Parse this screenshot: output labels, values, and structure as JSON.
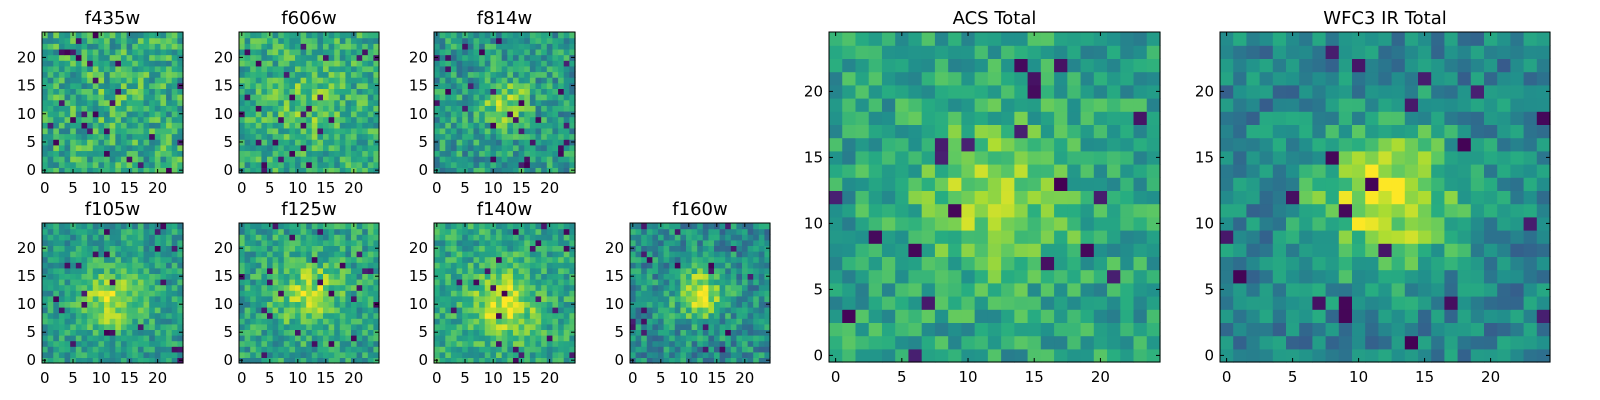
{
  "figure": {
    "colormap": "viridis",
    "colors": {
      "low": "#440154",
      "mid": "#21918c",
      "high": "#fde725"
    }
  },
  "chart_data": [
    {
      "type": "heatmap",
      "title": "f435w",
      "grid_size": 25,
      "xlim": [
        0,
        24
      ],
      "ylim": [
        0,
        24
      ],
      "xticks": [
        0,
        5,
        10,
        15,
        20
      ],
      "yticks": [
        0,
        5,
        10,
        15,
        20
      ],
      "peak": [
        12,
        12
      ],
      "peak_amp": 0.05,
      "peak_sigma": 4,
      "base": 0.62,
      "noise": 0.38,
      "seed": 11
    },
    {
      "type": "heatmap",
      "title": "f606w",
      "grid_size": 25,
      "xlim": [
        0,
        24
      ],
      "ylim": [
        0,
        24
      ],
      "xticks": [
        0,
        5,
        10,
        15,
        20
      ],
      "yticks": [
        0,
        5,
        10,
        15,
        20
      ],
      "peak": [
        12,
        12
      ],
      "peak_amp": 0.15,
      "peak_sigma": 4,
      "base": 0.62,
      "noise": 0.34,
      "seed": 23
    },
    {
      "type": "heatmap",
      "title": "f814w",
      "grid_size": 25,
      "xlim": [
        0,
        24
      ],
      "ylim": [
        0,
        24
      ],
      "xticks": [
        0,
        5,
        10,
        15,
        20
      ],
      "yticks": [
        0,
        5,
        10,
        15,
        20
      ],
      "peak": [
        12,
        12
      ],
      "peak_amp": 0.3,
      "peak_sigma": 3,
      "base": 0.55,
      "noise": 0.36,
      "seed": 37
    },
    {
      "type": "heatmap",
      "title": "f105w",
      "grid_size": 25,
      "xlim": [
        0,
        24
      ],
      "ylim": [
        0,
        24
      ],
      "xticks": [
        0,
        5,
        10,
        15,
        20
      ],
      "yticks": [
        0,
        5,
        10,
        15,
        20
      ],
      "peak": [
        12,
        11
      ],
      "peak_amp": 0.35,
      "peak_sigma": 4,
      "base": 0.55,
      "noise": 0.3,
      "seed": 41
    },
    {
      "type": "heatmap",
      "title": "f125w",
      "grid_size": 25,
      "xlim": [
        0,
        24
      ],
      "ylim": [
        0,
        24
      ],
      "xticks": [
        0,
        5,
        10,
        15,
        20
      ],
      "yticks": [
        0,
        5,
        10,
        15,
        20
      ],
      "peak": [
        12,
        12
      ],
      "peak_amp": 0.3,
      "peak_sigma": 4,
      "base": 0.58,
      "noise": 0.32,
      "seed": 53
    },
    {
      "type": "heatmap",
      "title": "f140w",
      "grid_size": 25,
      "xlim": [
        0,
        24
      ],
      "ylim": [
        0,
        24
      ],
      "xticks": [
        0,
        5,
        10,
        15,
        20
      ],
      "yticks": [
        0,
        5,
        10,
        15,
        20
      ],
      "peak": [
        12,
        10
      ],
      "peak_amp": 0.35,
      "peak_sigma": 4,
      "base": 0.6,
      "noise": 0.3,
      "seed": 67
    },
    {
      "type": "heatmap",
      "title": "f160w",
      "grid_size": 25,
      "xlim": [
        0,
        24
      ],
      "ylim": [
        0,
        24
      ],
      "xticks": [
        0,
        5,
        10,
        15,
        20
      ],
      "yticks": [
        0,
        5,
        10,
        15,
        20
      ],
      "peak": [
        12,
        12
      ],
      "peak_amp": 0.45,
      "peak_sigma": 3,
      "base": 0.5,
      "noise": 0.34,
      "seed": 79
    },
    {
      "type": "heatmap",
      "title": "ACS Total",
      "grid_size": 25,
      "xlim": [
        0,
        24
      ],
      "ylim": [
        0,
        24
      ],
      "xticks": [
        0,
        5,
        10,
        15,
        20
      ],
      "yticks": [
        0,
        5,
        10,
        15,
        20
      ],
      "peak": [
        12,
        12
      ],
      "peak_amp": 0.3,
      "peak_sigma": 4,
      "base": 0.58,
      "noise": 0.3,
      "seed": 97
    },
    {
      "type": "heatmap",
      "title": "WFC3 IR Total",
      "grid_size": 25,
      "xlim": [
        0,
        24
      ],
      "ylim": [
        0,
        24
      ],
      "xticks": [
        0,
        5,
        10,
        15,
        20
      ],
      "yticks": [
        0,
        5,
        10,
        15,
        20
      ],
      "peak": [
        12,
        12
      ],
      "peak_amp": 0.5,
      "peak_sigma": 4,
      "base": 0.45,
      "noise": 0.3,
      "seed": 113
    }
  ]
}
